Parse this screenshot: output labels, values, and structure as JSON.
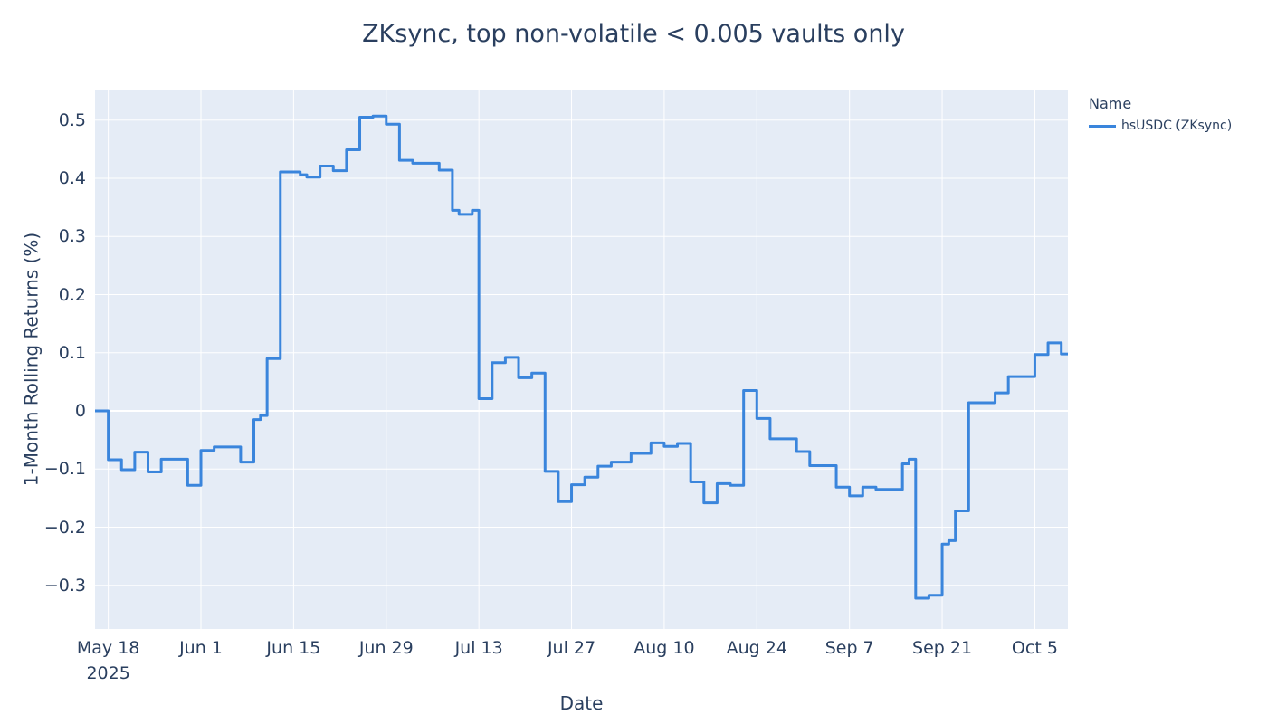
{
  "colors": {
    "paper_bg": "#ffffff",
    "plot_bg": "#e5ecf6",
    "grid": "#ffffff",
    "text": "#2a3f5f",
    "line": "#3a85dc"
  },
  "legend": {
    "title": "Name"
  },
  "chart_data": {
    "type": "line",
    "line_shape": "hv",
    "title": "ZKsync, top non-volatile < 0.005 vaults only",
    "xlabel": "Date",
    "ylabel": "1-Month Rolling Returns (%)",
    "grid": true,
    "legend_position": "right",
    "x_range": [
      "2025-05-16",
      "2025-10-10"
    ],
    "y_range": [
      -0.375,
      0.551
    ],
    "x_ticks": [
      {
        "label": "May 18",
        "sublabel": "2025",
        "value": "2025-05-18"
      },
      {
        "label": "Jun 1",
        "value": "2025-06-01"
      },
      {
        "label": "Jun 15",
        "value": "2025-06-15"
      },
      {
        "label": "Jun 29",
        "value": "2025-06-29"
      },
      {
        "label": "Jul 13",
        "value": "2025-07-13"
      },
      {
        "label": "Jul 27",
        "value": "2025-07-27"
      },
      {
        "label": "Aug 10",
        "value": "2025-08-10"
      },
      {
        "label": "Aug 24",
        "value": "2025-08-24"
      },
      {
        "label": "Sep 7",
        "value": "2025-09-07"
      },
      {
        "label": "Sep 21",
        "value": "2025-09-21"
      },
      {
        "label": "Oct 5",
        "value": "2025-10-05"
      }
    ],
    "y_ticks": [
      {
        "label": "0.5",
        "value": 0.5
      },
      {
        "label": "0.4",
        "value": 0.4
      },
      {
        "label": "0.3",
        "value": 0.3
      },
      {
        "label": "0.2",
        "value": 0.2
      },
      {
        "label": "0.1",
        "value": 0.1
      },
      {
        "label": "0",
        "value": 0
      },
      {
        "label": "−0.1",
        "value": -0.1
      },
      {
        "label": "−0.2",
        "value": -0.2
      },
      {
        "label": "−0.3",
        "value": -0.3
      }
    ],
    "series": [
      {
        "name": "hsUSDC (ZKsync)",
        "color": "#3a85dc",
        "end_x": "2025-10-10",
        "x": [
          "2025-05-16",
          "2025-05-18",
          "2025-05-20",
          "2025-05-22",
          "2025-05-24",
          "2025-05-26",
          "2025-05-30",
          "2025-06-01",
          "2025-06-03",
          "2025-06-07",
          "2025-06-09",
          "2025-06-10",
          "2025-06-11",
          "2025-06-13",
          "2025-06-16",
          "2025-06-17",
          "2025-06-19",
          "2025-06-21",
          "2025-06-23",
          "2025-06-25",
          "2025-06-27",
          "2025-06-29",
          "2025-07-01",
          "2025-07-03",
          "2025-07-07",
          "2025-07-09",
          "2025-07-10",
          "2025-07-12",
          "2025-07-13",
          "2025-07-15",
          "2025-07-17",
          "2025-07-19",
          "2025-07-21",
          "2025-07-23",
          "2025-07-25",
          "2025-07-27",
          "2025-07-29",
          "2025-07-31",
          "2025-08-02",
          "2025-08-05",
          "2025-08-08",
          "2025-08-10",
          "2025-08-12",
          "2025-08-14",
          "2025-08-16",
          "2025-08-18",
          "2025-08-20",
          "2025-08-22",
          "2025-08-24",
          "2025-08-26",
          "2025-08-30",
          "2025-09-01",
          "2025-09-05",
          "2025-09-07",
          "2025-09-09",
          "2025-09-11",
          "2025-09-15",
          "2025-09-16",
          "2025-09-17",
          "2025-09-19",
          "2025-09-21",
          "2025-09-22",
          "2025-09-23",
          "2025-09-25",
          "2025-09-29",
          "2025-10-01",
          "2025-10-05",
          "2025-10-07",
          "2025-10-09"
        ],
        "y": [
          0.0,
          -0.084,
          -0.101,
          -0.071,
          -0.105,
          -0.083,
          -0.128,
          -0.068,
          -0.062,
          -0.088,
          -0.015,
          -0.008,
          0.09,
          0.411,
          0.406,
          0.402,
          0.421,
          0.413,
          0.449,
          0.505,
          0.507,
          0.493,
          0.431,
          0.426,
          0.414,
          0.345,
          0.338,
          0.345,
          0.021,
          0.083,
          0.092,
          0.057,
          0.065,
          -0.104,
          -0.156,
          -0.127,
          -0.114,
          -0.095,
          -0.088,
          -0.073,
          -0.055,
          -0.061,
          -0.056,
          -0.122,
          -0.158,
          -0.125,
          -0.128,
          0.035,
          -0.013,
          -0.048,
          -0.07,
          -0.094,
          -0.131,
          -0.146,
          -0.131,
          -0.135,
          -0.091,
          -0.083,
          -0.322,
          -0.317,
          -0.229,
          -0.223,
          -0.172,
          0.014,
          0.031,
          0.059,
          0.097,
          0.117,
          0.098
        ]
      }
    ]
  }
}
